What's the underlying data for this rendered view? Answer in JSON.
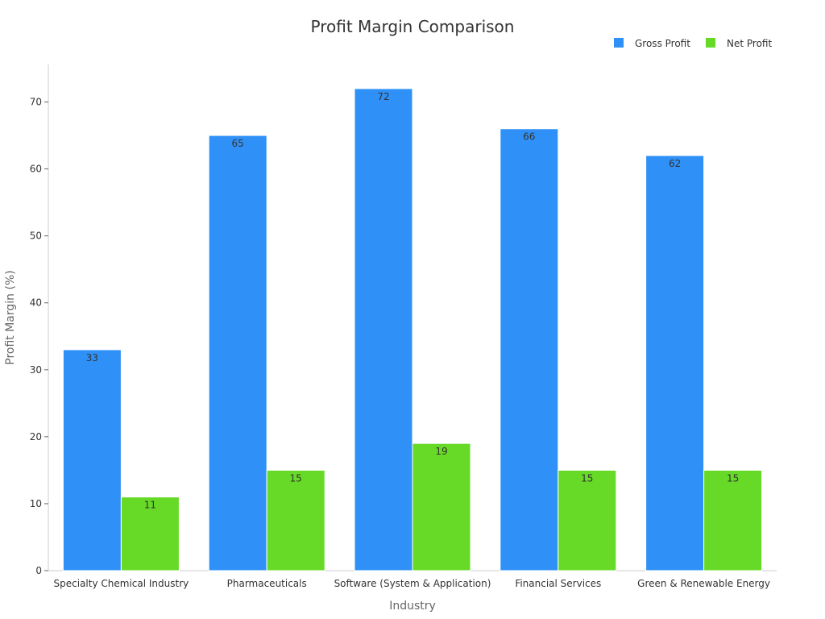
{
  "chart_data": {
    "type": "bar",
    "title": "Profit Margin Comparison",
    "xlabel": "Industry",
    "ylabel": "Profit Margin (%)",
    "ylim": [
      0,
      75.6
    ],
    "yticks": [
      0,
      10,
      20,
      30,
      40,
      50,
      60,
      70
    ],
    "legend_position": "top-right",
    "grid": false,
    "categories": [
      "Specialty Chemical Industry",
      "Pharmaceuticals",
      "Software (System & Application)",
      "Financial Services",
      "Green & Renewable Energy"
    ],
    "series": [
      {
        "name": "Gross Profit",
        "color": "#2F91F8",
        "values": [
          33,
          65,
          72,
          66,
          62
        ]
      },
      {
        "name": "Net Profit",
        "color": "#66DA26",
        "values": [
          11,
          15,
          19,
          15,
          15
        ]
      }
    ]
  }
}
